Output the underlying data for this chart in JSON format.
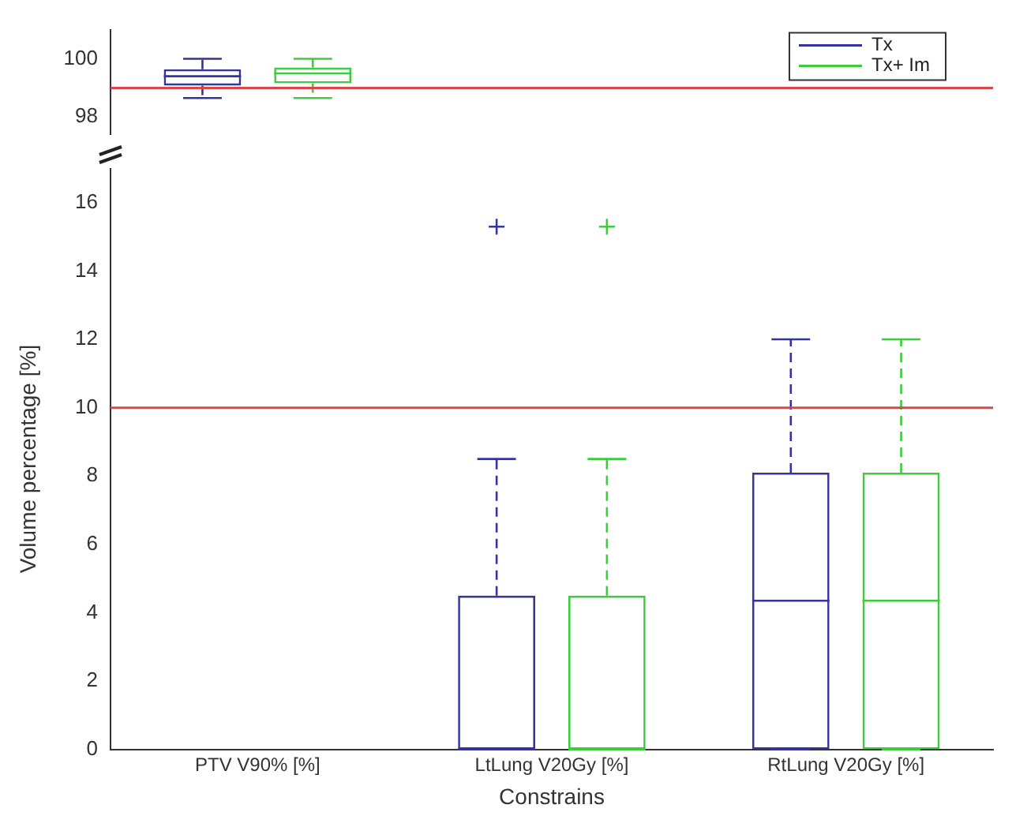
{
  "chart_data": [
    {
      "type": "box",
      "categories": [
        null,
        null,
        null
      ],
      "ylim": [
        97.4,
        101
      ],
      "yticks": [
        98,
        100
      ],
      "tick_labels": "y",
      "grid": false,
      "legend": "top right",
      "series": [
        {
          "name": "Tx",
          "color": "#34349c",
          "boxes": [
            {
              "low": 98.65,
              "q1": 99.08,
              "median": 99.4,
              "q3": 99.64,
              "high": 100
            },
            null,
            null
          ]
        },
        {
          "name": "Tx+ Im",
          "color": "#3ccc3c",
          "boxes": [
            {
              "low": 98.65,
              "q1": 99.16,
              "median": 99.5,
              "q3": 99.7,
              "high": 100
            },
            null,
            null
          ]
        }
      ],
      "ref_lines": [
        {
          "axis": "y",
          "value": 99,
          "color": "#d9474a"
        }
      ]
    },
    {
      "type": "box",
      "categories": [
        "PTV V90% [%]",
        "LtLung V20Gy [%]",
        "RtLung V20Gy [%]"
      ],
      "xlabel": "Constrains",
      "ylabel": "Volume percentage [%]",
      "ylim": [
        0,
        17
      ],
      "yticks": [
        0,
        2,
        4,
        6,
        8,
        10,
        12,
        14,
        16
      ],
      "grid": false,
      "series": [
        {
          "color": "#34349c",
          "boxes": [
            null,
            {
              "low": 0,
              "q1": 0,
              "median": 0,
              "q3": 4.5,
              "high": 8.5,
              "outliers": [
                15.3
              ]
            },
            {
              "low": 0,
              "q1": 0,
              "median": 4.35,
              "q3": 8.1,
              "high": 12
            }
          ]
        },
        {
          "color": "#3ccc3c",
          "boxes": [
            null,
            {
              "low": 0,
              "q1": 0,
              "median": 0,
              "q3": 4.5,
              "high": 8.5,
              "outliers": [
                15.3
              ]
            },
            {
              "low": 0,
              "q1": 0,
              "median": 4.35,
              "q3": 8.1,
              "high": 12
            }
          ]
        }
      ],
      "ref_lines": [
        {
          "axis": "y",
          "value": 10,
          "color": "#d9474a"
        }
      ]
    }
  ]
}
